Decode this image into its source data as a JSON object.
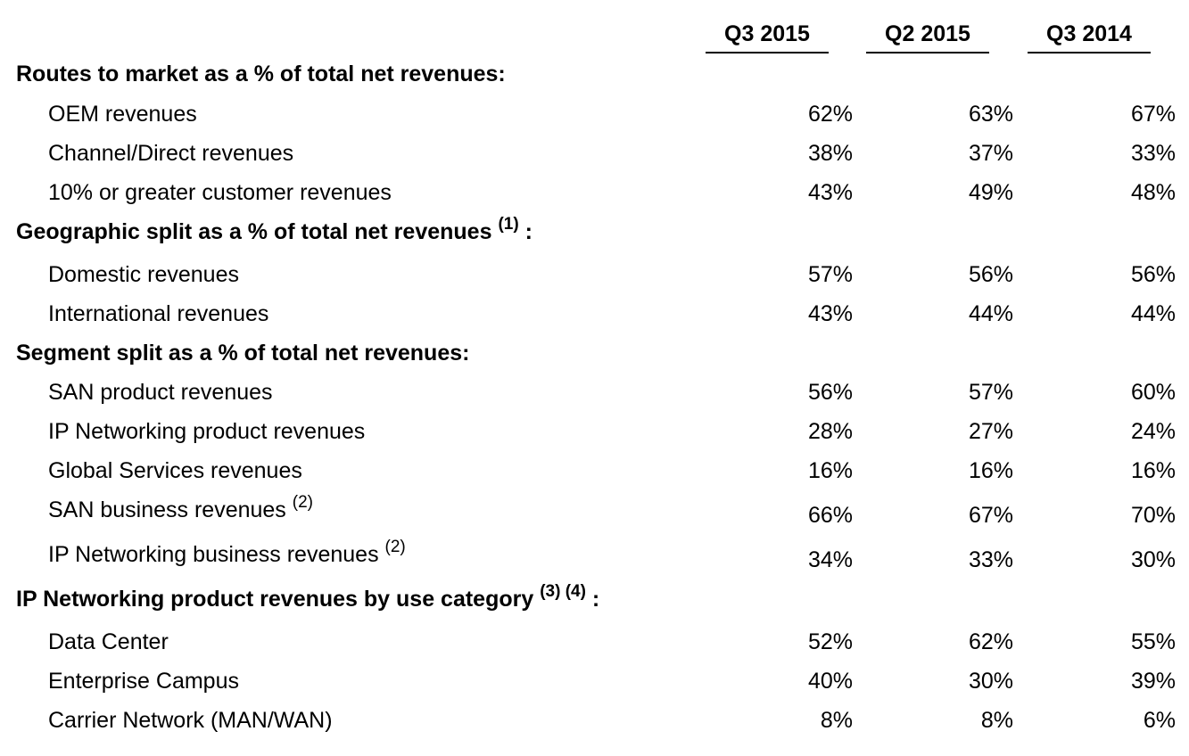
{
  "columns": [
    "Q3 2015",
    "Q2 2015",
    "Q3 2014"
  ],
  "sections": [
    {
      "title": "Routes to market as a % of total net revenues:",
      "note": "",
      "rows": [
        {
          "label": "OEM revenues",
          "note": "",
          "values": [
            "62%",
            "63%",
            "67%"
          ]
        },
        {
          "label": "Channel/Direct revenues",
          "note": "",
          "values": [
            "38%",
            "37%",
            "33%"
          ]
        },
        {
          "label": "10% or greater customer revenues",
          "note": "",
          "values": [
            "43%",
            "49%",
            "48%"
          ]
        }
      ]
    },
    {
      "title": "Geographic split as a % of total net revenues",
      "note": "(1)",
      "suffix": " :",
      "rows": [
        {
          "label": "Domestic revenues",
          "note": "",
          "values": [
            "57%",
            "56%",
            "56%"
          ]
        },
        {
          "label": "International revenues",
          "note": "",
          "values": [
            "43%",
            "44%",
            "44%"
          ]
        }
      ]
    },
    {
      "title": "Segment split as a % of total net revenues:",
      "note": "",
      "rows": [
        {
          "label": "SAN product revenues",
          "note": "",
          "values": [
            "56%",
            "57%",
            "60%"
          ]
        },
        {
          "label": "IP Networking product revenues",
          "note": "",
          "values": [
            "28%",
            "27%",
            "24%"
          ]
        },
        {
          "label": "Global Services revenues",
          "note": "",
          "values": [
            "16%",
            "16%",
            "16%"
          ]
        },
        {
          "label": "SAN business revenues",
          "note": "(2)",
          "values": [
            "66%",
            "67%",
            "70%"
          ]
        },
        {
          "label": "IP Networking business revenues",
          "note": "(2)",
          "values": [
            "34%",
            "33%",
            "30%"
          ]
        }
      ]
    },
    {
      "title": "IP Networking product revenues by use category",
      "note": "(3) (4)",
      "suffix": " :",
      "rows": [
        {
          "label": "Data Center",
          "note": "",
          "values": [
            "52%",
            "62%",
            "55%"
          ]
        },
        {
          "label": "Enterprise Campus",
          "note": "",
          "values": [
            "40%",
            "30%",
            "39%"
          ]
        },
        {
          "label": "Carrier Network (MAN/WAN)",
          "note": "",
          "values": [
            "8%",
            "8%",
            "6%"
          ]
        }
      ]
    }
  ]
}
